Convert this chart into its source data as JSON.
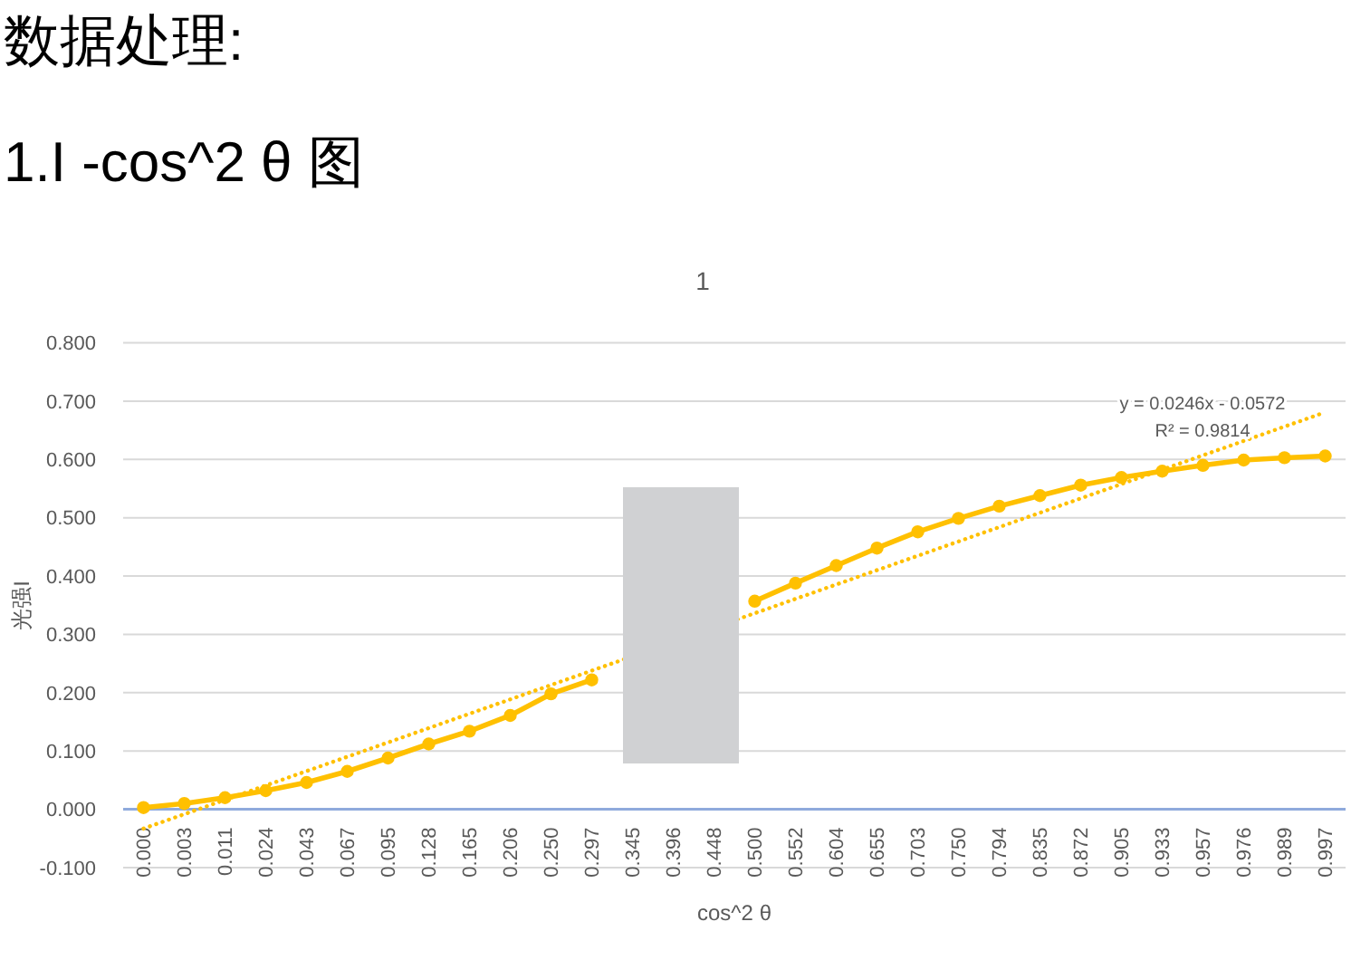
{
  "chart_data": {
    "type": "line",
    "title": "1",
    "xlabel": "cos^2 θ",
    "ylabel": "光强I",
    "categories": [
      "0.000",
      "0.003",
      "0.011",
      "0.024",
      "0.043",
      "0.067",
      "0.095",
      "0.128",
      "0.165",
      "0.206",
      "0.250",
      "0.297",
      "0.345",
      "0.396",
      "0.448",
      "0.500",
      "0.552",
      "0.604",
      "0.655",
      "0.703",
      "0.750",
      "0.794",
      "0.835",
      "0.872",
      "0.905",
      "0.933",
      "0.957",
      "0.976",
      "0.989",
      "0.997"
    ],
    "series": [
      {
        "color": "#ffc000",
        "marker": "circle",
        "line_style": "solid",
        "values": [
          0.003,
          0.01,
          0.02,
          0.032,
          0.046,
          0.065,
          0.088,
          0.112,
          0.134,
          0.161,
          0.198,
          0.222,
          null,
          null,
          null,
          0.357,
          0.388,
          0.418,
          0.448,
          0.476,
          0.499,
          0.52,
          0.538,
          0.556,
          0.569,
          0.58,
          0.59,
          0.599,
          0.603,
          0.606
        ]
      },
      {
        "type": "line",
        "color": "#ffc000",
        "marker": "none",
        "line_style": "dotted",
        "x": [
          "0.000",
          "0.997"
        ],
        "values": [
          -0.033,
          0.681
        ]
      }
    ],
    "ylim": [
      -0.1,
      0.8
    ],
    "yticks": [
      {
        "value": -0.1,
        "label": "-0.100"
      },
      {
        "value": 0,
        "label": "0.000"
      },
      {
        "value": 0.1,
        "label": "0.100"
      },
      {
        "value": 0.2,
        "label": "0.200"
      },
      {
        "value": 0.3,
        "label": "0.300"
      },
      {
        "value": 0.4,
        "label": "0.400"
      },
      {
        "value": 0.5,
        "label": "0.500"
      },
      {
        "value": 0.6,
        "label": "0.600"
      },
      {
        "value": 0.7,
        "label": "0.700"
      },
      {
        "value": 0.8,
        "label": "0.800"
      }
    ],
    "grid": "y",
    "ref_lines": [
      {
        "axis": "y",
        "value": 0,
        "color": "#8faadc"
      }
    ],
    "annotations": [
      "数据处理:",
      "1.I -cos^2 θ 图",
      "y = 0.0246x - 0.0572",
      "R² = 0.9814"
    ]
  }
}
